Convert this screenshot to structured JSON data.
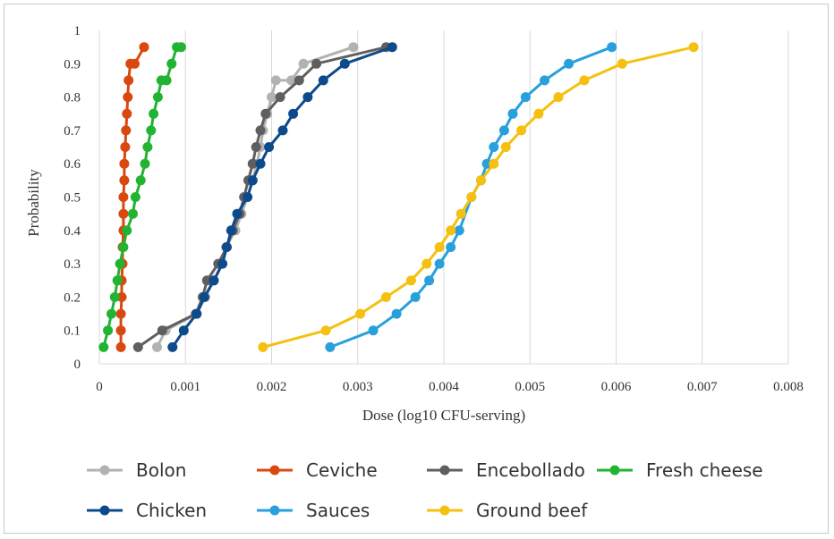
{
  "chart_data": {
    "type": "line",
    "title": "",
    "xlabel": "Dose (log10 CFU-serving)",
    "ylabel": "Probability",
    "xlim": [
      0,
      0.008
    ],
    "ylim": [
      0,
      1
    ],
    "x_ticks": [
      "0",
      "0.001",
      "0.002",
      "0.003",
      "0.004",
      "0.005",
      "0.006",
      "0.007",
      "0.008"
    ],
    "y_ticks": [
      "0",
      "0.1",
      "0.2",
      "0.3",
      "0.4",
      "0.5",
      "0.6",
      "0.7",
      "0.8",
      "0.9",
      "1"
    ],
    "grid": "vertical",
    "legend_position": "bottom",
    "series": [
      {
        "name": "Bolon",
        "color": "#b2b2b2",
        "x": [
          0.00067,
          0.00077,
          0.00113,
          0.00123,
          0.00133,
          0.00142,
          0.00147,
          0.00158,
          0.00165,
          0.00172,
          0.00178,
          0.00183,
          0.00187,
          0.0019,
          0.00195,
          0.002,
          0.00205,
          0.00223,
          0.00237,
          0.00295
        ],
        "y": [
          0.05,
          0.1,
          0.15,
          0.2,
          0.25,
          0.3,
          0.35,
          0.4,
          0.45,
          0.5,
          0.55,
          0.6,
          0.65,
          0.7,
          0.75,
          0.8,
          0.85,
          0.85,
          0.9,
          0.95
        ]
      },
      {
        "name": "Ceviche",
        "color": "#d9480f",
        "x": [
          0.00025,
          0.00025,
          0.00025,
          0.00026,
          0.00026,
          0.00027,
          0.00027,
          0.00028,
          0.00028,
          0.00028,
          0.00029,
          0.00029,
          0.0003,
          0.00031,
          0.00032,
          0.00033,
          0.00034,
          0.00036,
          0.00041,
          0.00052
        ],
        "y": [
          0.05,
          0.1,
          0.15,
          0.2,
          0.25,
          0.3,
          0.35,
          0.4,
          0.45,
          0.5,
          0.55,
          0.6,
          0.65,
          0.7,
          0.75,
          0.8,
          0.85,
          0.9,
          0.9,
          0.95
        ]
      },
      {
        "name": "Encebollado",
        "color": "#5f5f5f",
        "x": [
          0.00045,
          0.00073,
          0.00112,
          0.0012,
          0.00125,
          0.00138,
          0.00148,
          0.00155,
          0.00163,
          0.00168,
          0.00173,
          0.00178,
          0.00182,
          0.00187,
          0.00193,
          0.0021,
          0.00232,
          0.00252,
          0.00333
        ],
        "y": [
          0.05,
          0.1,
          0.15,
          0.2,
          0.25,
          0.3,
          0.35,
          0.4,
          0.45,
          0.5,
          0.55,
          0.6,
          0.65,
          0.7,
          0.75,
          0.8,
          0.85,
          0.9,
          0.95
        ]
      },
      {
        "name": "Fresh cheese",
        "color": "#22b333",
        "x": [
          5e-05,
          0.0001,
          0.00014,
          0.00018,
          0.00021,
          0.00024,
          0.00028,
          0.00032,
          0.00039,
          0.00042,
          0.00048,
          0.00053,
          0.00056,
          0.0006,
          0.00063,
          0.00068,
          0.00072,
          0.00078,
          0.00084,
          0.0009,
          0.00095
        ],
        "y": [
          0.05,
          0.1,
          0.15,
          0.2,
          0.25,
          0.3,
          0.35,
          0.4,
          0.45,
          0.5,
          0.55,
          0.6,
          0.65,
          0.7,
          0.75,
          0.8,
          0.85,
          0.85,
          0.9,
          0.95,
          0.95
        ]
      },
      {
        "name": "Chicken",
        "color": "#0d4a8c",
        "x": [
          0.00085,
          0.00098,
          0.00113,
          0.00122,
          0.00133,
          0.00143,
          0.00148,
          0.00153,
          0.0016,
          0.00172,
          0.00178,
          0.00187,
          0.00197,
          0.00213,
          0.00225,
          0.00242,
          0.0026,
          0.00285,
          0.0034
        ],
        "y": [
          0.05,
          0.1,
          0.15,
          0.2,
          0.25,
          0.3,
          0.35,
          0.4,
          0.45,
          0.5,
          0.55,
          0.6,
          0.65,
          0.7,
          0.75,
          0.8,
          0.85,
          0.9,
          0.95
        ]
      },
      {
        "name": "Sauces",
        "color": "#28a0dc",
        "x": [
          0.00268,
          0.00318,
          0.00345,
          0.00367,
          0.00383,
          0.00395,
          0.00408,
          0.00418,
          0.00432,
          0.00443,
          0.0045,
          0.00458,
          0.0047,
          0.0048,
          0.00495,
          0.00517,
          0.00545,
          0.00595
        ],
        "y": [
          0.05,
          0.1,
          0.15,
          0.2,
          0.25,
          0.3,
          0.35,
          0.4,
          0.5,
          0.55,
          0.6,
          0.65,
          0.7,
          0.75,
          0.8,
          0.85,
          0.9,
          0.95
        ]
      },
      {
        "name": "Ground beef",
        "color": "#f5c010",
        "x": [
          0.0019,
          0.00263,
          0.00303,
          0.00333,
          0.00362,
          0.0038,
          0.00395,
          0.00408,
          0.0042,
          0.00432,
          0.00443,
          0.00458,
          0.00472,
          0.0049,
          0.0051,
          0.00533,
          0.00563,
          0.00607,
          0.0069
        ],
        "y": [
          0.05,
          0.1,
          0.15,
          0.2,
          0.25,
          0.3,
          0.35,
          0.4,
          0.45,
          0.5,
          0.55,
          0.6,
          0.65,
          0.7,
          0.75,
          0.8,
          0.85,
          0.9,
          0.95
        ]
      }
    ]
  }
}
